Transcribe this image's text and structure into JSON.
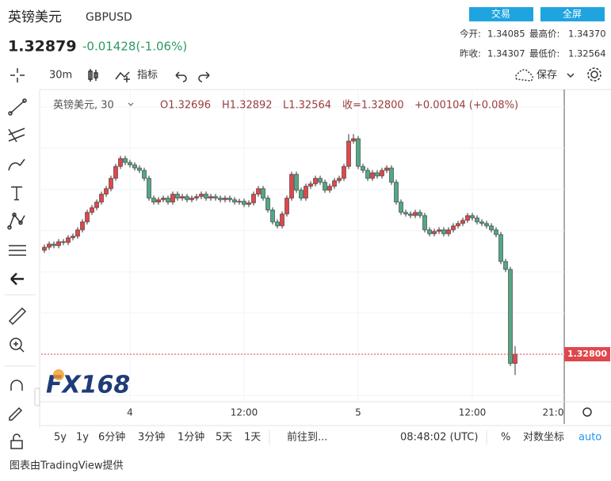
{
  "header": {
    "name": "英镑美元",
    "symbol": "GBPUSD",
    "price": "1.32879",
    "change": "-0.01428(-1.06%)",
    "buttons": [
      "交易",
      "全屏"
    ],
    "stats": [
      {
        "label": "今开:",
        "value": "1.34085"
      },
      {
        "label": "最高价:",
        "value": "1.34370"
      },
      {
        "label": "昨收:",
        "value": "1.34307"
      },
      {
        "label": "最低价:",
        "value": "1.32564"
      }
    ]
  },
  "toolbar": {
    "interval": "30m",
    "indicators": "指标",
    "save": "保存"
  },
  "chart_data": {
    "type": "candlestick",
    "up_color": "#e0474c",
    "down_color": "#53a885",
    "legend": {
      "name": "英镑美元, 30",
      "open": "O1.32696",
      "high": "H1.32892",
      "low": "L1.32564",
      "close": "收=1.32800",
      "change": "+0.00104 (+0.08%)"
    },
    "ylim": [
      1.32278,
      1.35788
    ],
    "categories": [
      null,
      null,
      null,
      null,
      null,
      null,
      null,
      null,
      null,
      null,
      null,
      null,
      null,
      null,
      null,
      null,
      null,
      null,
      "4",
      null,
      null,
      null,
      null,
      null,
      null,
      null,
      null,
      null,
      null,
      null,
      null,
      null,
      null,
      null,
      null,
      null,
      null,
      null,
      null,
      null,
      null,
      null,
      "12:00",
      null,
      null,
      null,
      null,
      null,
      null,
      null,
      null,
      null,
      null,
      null,
      null,
      null,
      null,
      null,
      null,
      null,
      null,
      null,
      null,
      null,
      null,
      null,
      "5",
      null,
      null,
      null,
      null,
      null,
      null,
      null,
      null,
      null,
      null,
      null,
      null,
      null,
      null,
      null,
      null,
      null,
      null,
      null,
      null,
      null,
      null,
      null,
      "12:00",
      null,
      null,
      null,
      null,
      null,
      null,
      null,
      null,
      null
    ],
    "axis_end_label": "21:0",
    "candles": [
      [
        1.3398,
        1.34045,
        1.3395,
        1.34015
      ],
      [
        1.34015,
        1.34081,
        1.33985,
        1.34051
      ],
      [
        1.34051,
        1.34081,
        1.34003,
        1.34033
      ],
      [
        1.34033,
        1.34108,
        1.34003,
        1.34078
      ],
      [
        1.34078,
        1.34108,
        1.34039,
        1.34069
      ],
      [
        1.34069,
        1.34153,
        1.34039,
        1.34123
      ],
      [
        1.34123,
        1.34171,
        1.34093,
        1.34141
      ],
      [
        1.34141,
        1.34243,
        1.34111,
        1.34213
      ],
      [
        1.34213,
        1.34333,
        1.34183,
        1.34303
      ],
      [
        1.34303,
        1.34441,
        1.34273,
        1.34411
      ],
      [
        1.34411,
        1.34495,
        1.34381,
        1.34465
      ],
      [
        1.34465,
        1.34558,
        1.34435,
        1.34528
      ],
      [
        1.34528,
        1.34648,
        1.34498,
        1.34618
      ],
      [
        1.34618,
        1.34711,
        1.34588,
        1.34681
      ],
      [
        1.34681,
        1.34828,
        1.34651,
        1.34798
      ],
      [
        1.34798,
        1.34963,
        1.34768,
        1.34933
      ],
      [
        1.34933,
        1.35053,
        1.34903,
        1.35023
      ],
      [
        1.35023,
        1.35053,
        1.34948,
        1.34978
      ],
      [
        1.34978,
        1.35008,
        1.34921,
        1.34951
      ],
      [
        1.34951,
        1.34981,
        1.34885,
        1.34915
      ],
      [
        1.34915,
        1.34945,
        1.34858,
        1.34888
      ],
      [
        1.34888,
        1.34918,
        1.34768,
        1.34798
      ],
      [
        1.34798,
        1.34828,
        1.34543,
        1.34573
      ],
      [
        1.34573,
        1.34603,
        1.34498,
        1.34528
      ],
      [
        1.34528,
        1.34585,
        1.34498,
        1.34555
      ],
      [
        1.34555,
        1.34603,
        1.34525,
        1.34573
      ],
      [
        1.34573,
        1.34603,
        1.34498,
        1.34528
      ],
      [
        1.34528,
        1.34648,
        1.34498,
        1.34618
      ],
      [
        1.34618,
        1.34648,
        1.34543,
        1.34573
      ],
      [
        1.34573,
        1.34621,
        1.34543,
        1.34591
      ],
      [
        1.34591,
        1.34621,
        1.34525,
        1.34555
      ],
      [
        1.34555,
        1.34603,
        1.34525,
        1.34573
      ],
      [
        1.34573,
        1.34621,
        1.34543,
        1.34591
      ],
      [
        1.34591,
        1.34648,
        1.34561,
        1.34618
      ],
      [
        1.34618,
        1.34648,
        1.34543,
        1.34573
      ],
      [
        1.34573,
        1.34621,
        1.34543,
        1.34591
      ],
      [
        1.34591,
        1.34621,
        1.34543,
        1.34573
      ],
      [
        1.34573,
        1.34603,
        1.34525,
        1.34555
      ],
      [
        1.34555,
        1.34603,
        1.34525,
        1.34573
      ],
      [
        1.34573,
        1.34603,
        1.34525,
        1.34555
      ],
      [
        1.34555,
        1.34585,
        1.34498,
        1.34528
      ],
      [
        1.34528,
        1.34567,
        1.34498,
        1.34537
      ],
      [
        1.34537,
        1.34567,
        1.34471,
        1.34501
      ],
      [
        1.34501,
        1.34549,
        1.34471,
        1.34519
      ],
      [
        1.34519,
        1.34648,
        1.34489,
        1.34618
      ],
      [
        1.34618,
        1.34711,
        1.34588,
        1.34681
      ],
      [
        1.34681,
        1.34711,
        1.34543,
        1.34573
      ],
      [
        1.34573,
        1.34603,
        1.34408,
        1.34438
      ],
      [
        1.34438,
        1.34468,
        1.34273,
        1.34303
      ],
      [
        1.34303,
        1.34333,
        1.34228,
        1.34258
      ],
      [
        1.34258,
        1.34423,
        1.34228,
        1.34393
      ],
      [
        1.34393,
        1.34603,
        1.34363,
        1.34573
      ],
      [
        1.34573,
        1.34873,
        1.34543,
        1.34843
      ],
      [
        1.34843,
        1.34873,
        1.34633,
        1.34663
      ],
      [
        1.34663,
        1.34693,
        1.34543,
        1.34573
      ],
      [
        1.34573,
        1.34738,
        1.34543,
        1.34708
      ],
      [
        1.34708,
        1.34765,
        1.34678,
        1.34735
      ],
      [
        1.34735,
        1.34828,
        1.34705,
        1.34798
      ],
      [
        1.34798,
        1.34828,
        1.34723,
        1.34753
      ],
      [
        1.34753,
        1.34783,
        1.34633,
        1.34663
      ],
      [
        1.34663,
        1.34738,
        1.34633,
        1.34708
      ],
      [
        1.34708,
        1.34801,
        1.34678,
        1.34771
      ],
      [
        1.34771,
        1.34828,
        1.34741,
        1.34798
      ],
      [
        1.34798,
        1.34963,
        1.34768,
        1.34933
      ],
      [
        1.34933,
        1.353,
        1.34903,
        1.35221
      ],
      [
        1.35221,
        1.353,
        1.35191,
        1.35248
      ],
      [
        1.35248,
        1.35278,
        1.34903,
        1.34933
      ],
      [
        1.34933,
        1.34963,
        1.34858,
        1.34888
      ],
      [
        1.34888,
        1.34918,
        1.34768,
        1.34798
      ],
      [
        1.34798,
        1.34891,
        1.34768,
        1.34861
      ],
      [
        1.34861,
        1.34891,
        1.34795,
        1.34825
      ],
      [
        1.34825,
        1.34918,
        1.34795,
        1.34888
      ],
      [
        1.34888,
        1.34945,
        1.34858,
        1.34915
      ],
      [
        1.34915,
        1.34945,
        1.34723,
        1.34753
      ],
      [
        1.34753,
        1.34783,
        1.34498,
        1.34528
      ],
      [
        1.34528,
        1.34558,
        1.34381,
        1.34411
      ],
      [
        1.34411,
        1.34441,
        1.34363,
        1.34393
      ],
      [
        1.34393,
        1.34423,
        1.34345,
        1.34375
      ],
      [
        1.34375,
        1.34441,
        1.34345,
        1.34411
      ],
      [
        1.34411,
        1.34441,
        1.34345,
        1.34375
      ],
      [
        1.34375,
        1.34405,
        1.34183,
        1.34213
      ],
      [
        1.34213,
        1.34243,
        1.34138,
        1.34168
      ],
      [
        1.34168,
        1.34225,
        1.34138,
        1.34195
      ],
      [
        1.34195,
        1.34243,
        1.34165,
        1.34213
      ],
      [
        1.34213,
        1.34243,
        1.34138,
        1.34168
      ],
      [
        1.34168,
        1.34243,
        1.34138,
        1.34213
      ],
      [
        1.34213,
        1.34288,
        1.34183,
        1.34258
      ],
      [
        1.34258,
        1.34315,
        1.34228,
        1.34285
      ],
      [
        1.34285,
        1.34351,
        1.34255,
        1.34321
      ],
      [
        1.34321,
        1.34405,
        1.34291,
        1.34375
      ],
      [
        1.34375,
        1.34405,
        1.34318,
        1.34348
      ],
      [
        1.34348,
        1.34378,
        1.34273,
        1.34303
      ],
      [
        1.34303,
        1.34333,
        1.34255,
        1.34285
      ],
      [
        1.34285,
        1.34315,
        1.34228,
        1.34258
      ],
      [
        1.34258,
        1.34288,
        1.34183,
        1.34213
      ],
      [
        1.34213,
        1.34243,
        1.34129,
        1.34159
      ],
      [
        1.34159,
        1.34189,
        1.33823,
        1.33853
      ],
      [
        1.33853,
        1.33883,
        1.33733,
        1.33763
      ],
      [
        1.33763,
        1.33793,
        1.32666,
        1.32696
      ],
      [
        1.32696,
        1.32892,
        1.32564,
        1.328
      ]
    ],
    "last_price_label": "1.32800",
    "watermark": "FX168"
  },
  "bottom_bar": {
    "ranges": [
      "5y",
      "1y",
      "6分钟",
      "3分钟",
      "1分钟",
      "5天",
      "1天"
    ],
    "goto": "前往到...",
    "time": "08:48:02 (UTC)",
    "percent": "%",
    "log": "对数坐标",
    "auto": "auto"
  },
  "footer": "图表由TradingView提供"
}
